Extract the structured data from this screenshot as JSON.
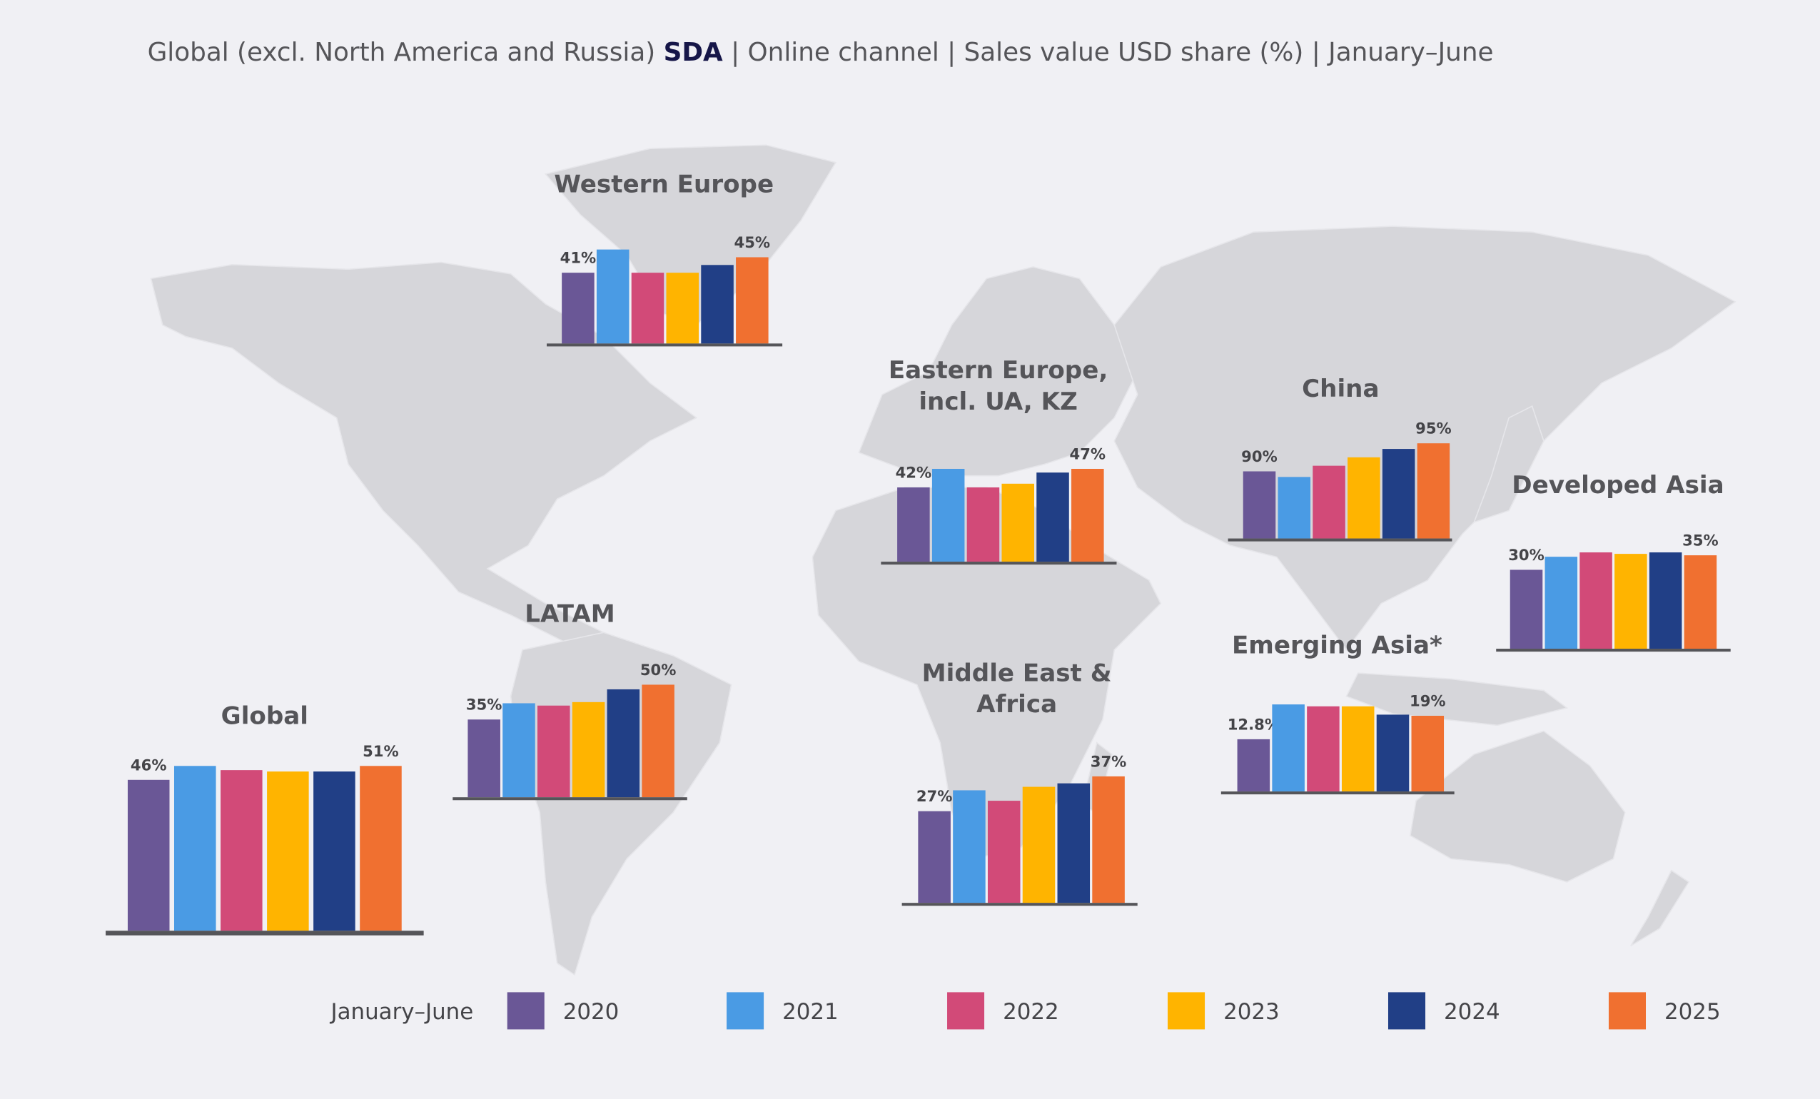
{
  "title": {
    "prefix": "Global (excl. North America and Russia) ",
    "highlight": "SDA",
    "suffix": " | Online channel | Sales value USD share (%) | January–June"
  },
  "legend": {
    "title": "January–June",
    "items": [
      {
        "name": "2020",
        "color": "#6a5796"
      },
      {
        "name": "2021",
        "color": "#4a9be4"
      },
      {
        "name": "2022",
        "color": "#d24a78"
      },
      {
        "name": "2023",
        "color": "#ffb400"
      },
      {
        "name": "2024",
        "color": "#213f86"
      },
      {
        "name": "2025",
        "color": "#f07030"
      }
    ]
  },
  "chart_data": [
    {
      "type": "bar",
      "title": [
        "Western Europe"
      ],
      "values": [
        41,
        47,
        41,
        41,
        43,
        45
      ],
      "value_labels": [
        "41%",
        null,
        null,
        null,
        null,
        "45%"
      ]
    },
    {
      "type": "bar",
      "title": [
        "Eastern Europe,",
        "incl. UA, KZ"
      ],
      "values": [
        42,
        47,
        42,
        43,
        46,
        47
      ],
      "value_labels": [
        "42%",
        null,
        null,
        null,
        null,
        "47%"
      ]
    },
    {
      "type": "bar",
      "title": [
        "China"
      ],
      "values": [
        90,
        89,
        91,
        92.5,
        94,
        95
      ],
      "value_labels": [
        "90%",
        null,
        null,
        null,
        null,
        "95%"
      ]
    },
    {
      "type": "bar",
      "title": [
        "Developed Asia"
      ],
      "values": [
        30,
        34.5,
        36,
        35.5,
        36,
        35
      ],
      "value_labels": [
        "30%",
        null,
        null,
        null,
        null,
        "35%"
      ]
    },
    {
      "type": "bar",
      "title": [
        "Emerging Asia*"
      ],
      "values": [
        12.8,
        22,
        21.5,
        21.5,
        19.3,
        19
      ],
      "value_labels": [
        "12.8%",
        null,
        null,
        null,
        null,
        "19%"
      ]
    },
    {
      "type": "bar",
      "title": [
        "Middle East &",
        "Africa"
      ],
      "values": [
        27,
        33,
        30,
        34,
        35,
        37
      ],
      "value_labels": [
        "27%",
        null,
        null,
        null,
        null,
        "37%"
      ]
    },
    {
      "type": "bar",
      "title": [
        "LATAM"
      ],
      "values": [
        35,
        42,
        41,
        42.5,
        48,
        50
      ],
      "value_labels": [
        "35%",
        null,
        null,
        null,
        null,
        "50%"
      ]
    },
    {
      "type": "bar",
      "title": [
        "Global"
      ],
      "values": [
        46,
        51,
        49.5,
        49,
        49,
        51
      ],
      "value_labels": [
        "46%",
        null,
        null,
        null,
        null,
        "51%"
      ]
    }
  ]
}
